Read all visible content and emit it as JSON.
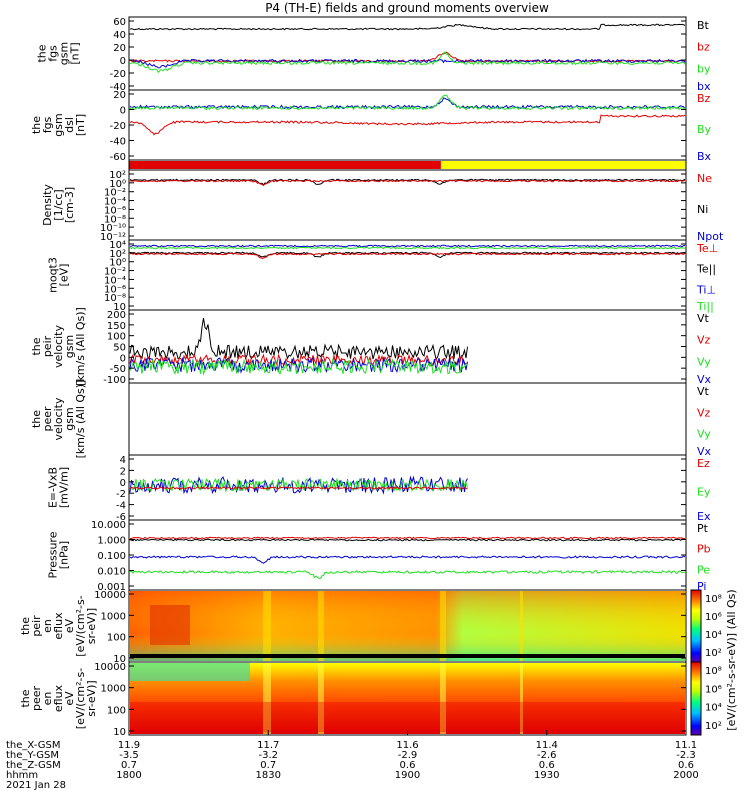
{
  "title": "P4 (TH-E) fields and ground moments overview",
  "colors": {
    "black": "#000000",
    "red": "#e00000",
    "green": "#20e020",
    "blue": "#0000d0",
    "yellow": "#ffff00"
  },
  "chart_data": [
    {
      "type": "line",
      "panel": "fgs_gsm",
      "ylabel": [
        "the",
        "fgs",
        "gsm",
        "[nT]"
      ],
      "ylim": [
        -40,
        60
      ],
      "yticks": [
        60,
        40,
        20,
        0,
        -20,
        -40
      ],
      "series": [
        {
          "name": "Bt",
          "color": "black"
        },
        {
          "name": "bz",
          "color": "red"
        },
        {
          "name": "by",
          "color": "green"
        },
        {
          "name": "bx",
          "color": "blue"
        }
      ]
    },
    {
      "type": "line",
      "panel": "fgs_dsl",
      "ylabel": [
        "the",
        "fgs",
        "gsm",
        "dsl",
        "[nT]"
      ],
      "ylim": [
        -60,
        20
      ],
      "yticks": [
        20,
        0,
        -20,
        -40,
        -60
      ],
      "series": [
        {
          "name": "Bz",
          "color": "red"
        },
        {
          "name": "By",
          "color": "green"
        },
        {
          "name": "Bx",
          "color": "blue"
        }
      ]
    },
    {
      "type": "bar",
      "panel": "mode_bar",
      "segments": [
        {
          "color": "red",
          "from": 1800,
          "to": 1912
        },
        {
          "color": "yellow",
          "from": 1912,
          "to": 2000
        }
      ]
    },
    {
      "type": "line",
      "panel": "density",
      "ylabel": [
        "Density",
        "[1/cc]",
        "[cm-3]"
      ],
      "log": true,
      "yticks": [
        "10²",
        "10⁰",
        "10⁻²",
        "10⁻⁴",
        "10⁻⁶",
        "10⁻⁸",
        "10⁻¹⁰",
        "10⁻¹²"
      ],
      "series": [
        {
          "name": "Ne",
          "color": "red"
        },
        {
          "name": "Ni",
          "color": "black"
        },
        {
          "name": "Npot",
          "color": "blue"
        }
      ]
    },
    {
      "type": "line",
      "panel": "temperature",
      "ylabel": [
        "moqt3",
        "[eV]"
      ],
      "log": true,
      "yticks": [
        "10⁴",
        "10²",
        "10⁰",
        "10⁻²",
        "10⁻⁴",
        "10⁻⁶",
        "10⁻⁸",
        "10"
      ],
      "series": [
        {
          "name": "Te⊥",
          "color": "red"
        },
        {
          "name": "Te||",
          "color": "black"
        },
        {
          "name": "Ti⊥",
          "color": "blue"
        },
        {
          "name": "Ti||",
          "color": "green"
        }
      ]
    },
    {
      "type": "line",
      "panel": "peir_velocity",
      "ylabel": [
        "the",
        "peir",
        "velocity",
        "gsm",
        "[km/s (All Qs)]"
      ],
      "ylim": [
        -100,
        200
      ],
      "yticks": [
        200,
        150,
        100,
        50,
        0,
        -50,
        -100
      ],
      "series": [
        {
          "name": "Vt",
          "color": "black"
        },
        {
          "name": "Vz",
          "color": "red"
        },
        {
          "name": "Vy",
          "color": "green"
        },
        {
          "name": "Vx",
          "color": "blue"
        }
      ]
    },
    {
      "type": "line",
      "panel": "peer_velocity",
      "ylabel": [
        "the",
        "peer",
        "velocity",
        "gsm",
        "[km/s (All Qs)]"
      ],
      "yticks": [],
      "series": [
        {
          "name": "Vt",
          "color": "black"
        },
        {
          "name": "Vz",
          "color": "red"
        },
        {
          "name": "Vy",
          "color": "green"
        },
        {
          "name": "Vx",
          "color": "blue"
        }
      ]
    },
    {
      "type": "line",
      "panel": "efield",
      "ylabel": [
        "E=-VxB",
        "[mV/m]"
      ],
      "ylim": [
        -6,
        4
      ],
      "yticks": [
        4,
        2,
        0,
        -2,
        -4,
        -6
      ],
      "series": [
        {
          "name": "Ez",
          "color": "red"
        },
        {
          "name": "Ey",
          "color": "green"
        },
        {
          "name": "Ex",
          "color": "blue"
        }
      ]
    },
    {
      "type": "line",
      "panel": "pressure",
      "ylabel": [
        "Pressure",
        "[nPa]"
      ],
      "log": true,
      "yticks": [
        "10.000",
        "1.000",
        "0.100",
        "0.010",
        "0.001"
      ],
      "series": [
        {
          "name": "Pt",
          "color": "black"
        },
        {
          "name": "Pb",
          "color": "red"
        },
        {
          "name": "Pe",
          "color": "green"
        },
        {
          "name": "Pi",
          "color": "blue"
        }
      ]
    },
    {
      "type": "heatmap",
      "panel": "peir_spec",
      "ylabel": [
        "the",
        "peir",
        "en",
        "eflux",
        "eV",
        "[eV/(cm²-s-",
        "sr-eV)]"
      ],
      "yticks": [
        "10000",
        "1000",
        "100",
        "10"
      ]
    },
    {
      "type": "heatmap",
      "panel": "peer_spec",
      "ylabel": [
        "the",
        "peer",
        "en",
        "eflux",
        "eV",
        "[eV/(cm²-s-",
        "sr-eV)]"
      ],
      "yticks": [
        "10000",
        "1000",
        "100",
        "10"
      ]
    }
  ],
  "colorbar": {
    "label": "[eV/(cm²-s-sr-eV)] (All Qs)",
    "ticks": [
      "10⁸",
      "10⁶",
      "10⁴",
      "10²"
    ],
    "ticks_lower": [
      "10⁸",
      "10⁶",
      "10⁴",
      "10²"
    ]
  },
  "x_axis": {
    "row_labels": [
      "the_X-GSM",
      "the_Y-GSM",
      "the_Z-GSM",
      "hhmm",
      "2021 Jan 28"
    ],
    "ticks": [
      {
        "x": "11.9",
        "y": "-3.5",
        "z": "0.7",
        "t": "1800"
      },
      {
        "x": "11.7",
        "y": "-3.2",
        "z": "0.7",
        "t": "1830"
      },
      {
        "x": "11.6",
        "y": "-2.9",
        "z": "0.6",
        "t": "1900"
      },
      {
        "x": "11.4",
        "y": "-2.6",
        "z": "0.6",
        "t": "1930"
      },
      {
        "x": "11.1",
        "y": "-2.3",
        "z": "0.6",
        "t": "2000"
      }
    ]
  }
}
